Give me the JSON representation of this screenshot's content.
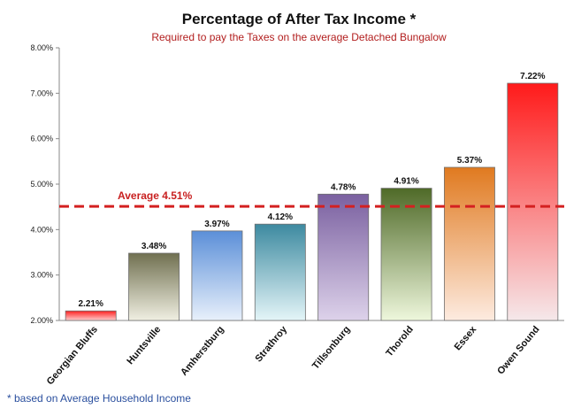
{
  "chart_data": {
    "type": "bar",
    "title": "Percentage of After Tax Income *",
    "subtitle": "Required to pay the Taxes on the average Detached Bungalow",
    "categories": [
      "Georgian Bluffs",
      "Huntsville",
      "Amherstburg",
      "Strathroy",
      "Tillsonburg",
      "Thorold",
      "Essex",
      "Owen Sound"
    ],
    "values": [
      2.21,
      3.48,
      3.97,
      4.12,
      4.78,
      4.91,
      5.37,
      7.22
    ],
    "data_labels": [
      "2.21%",
      "3.48%",
      "3.97%",
      "4.12%",
      "4.78%",
      "4.91%",
      "5.37%",
      "7.22%"
    ],
    "bar_colors": [
      [
        "#ff2020",
        "#ffd0d0"
      ],
      [
        "#707050",
        "#f0efe2"
      ],
      [
        "#5b8fd8",
        "#e8f0fb"
      ],
      [
        "#3d8aa0",
        "#e4f5f8"
      ],
      [
        "#7a60a0",
        "#ddd2ea"
      ],
      [
        "#4f6a28",
        "#eef7dc"
      ],
      [
        "#e07a20",
        "#fdebe0"
      ],
      [
        "#ff1a1a",
        "#f5e8ea"
      ]
    ],
    "ylim": [
      2.0,
      8.0
    ],
    "yticks": [
      2.0,
      3.0,
      4.0,
      5.0,
      6.0,
      7.0,
      8.0
    ],
    "ytick_labels": [
      "2.00%",
      "3.00%",
      "4.00%",
      "5.00%",
      "6.00%",
      "7.00%",
      "8.00%"
    ],
    "grid": false,
    "average": {
      "value": 4.51,
      "label": "Average 4.51%",
      "color": "#d42020"
    },
    "footnote": "* based on Average Household Income"
  }
}
